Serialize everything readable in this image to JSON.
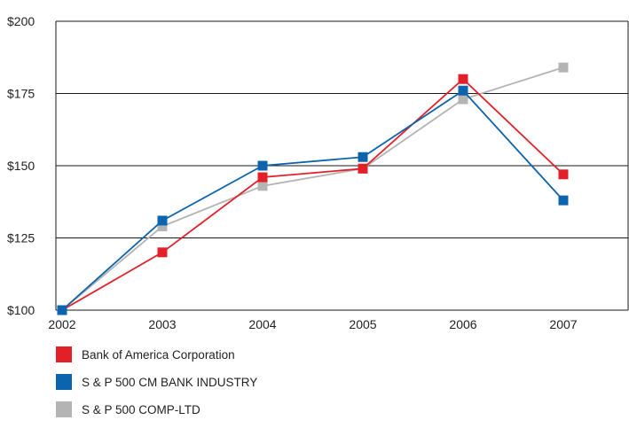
{
  "chart_data": {
    "type": "line",
    "title": "",
    "xlabel": "",
    "ylabel": "",
    "categories": [
      "2002",
      "2003",
      "2004",
      "2005",
      "2006",
      "2007"
    ],
    "y_ticks": [
      "$100",
      "$125",
      "$150",
      "$175",
      "$200"
    ],
    "ylim": [
      100,
      200
    ],
    "grid": "horizontal",
    "legend_position": "bottom-left",
    "series": [
      {
        "name": "Bank of America Corporation",
        "color": "#e3202a",
        "values": [
          100,
          120,
          146,
          149,
          180,
          147
        ]
      },
      {
        "name": "S & P 500 CM BANK INDUSTRY",
        "color": "#0b64ad",
        "values": [
          100,
          131,
          150,
          153,
          176,
          138
        ]
      },
      {
        "name": "S & P 500 COMP-LTD",
        "color": "#b4b4b4",
        "values": [
          100,
          129,
          143,
          149,
          173,
          184
        ]
      }
    ]
  }
}
